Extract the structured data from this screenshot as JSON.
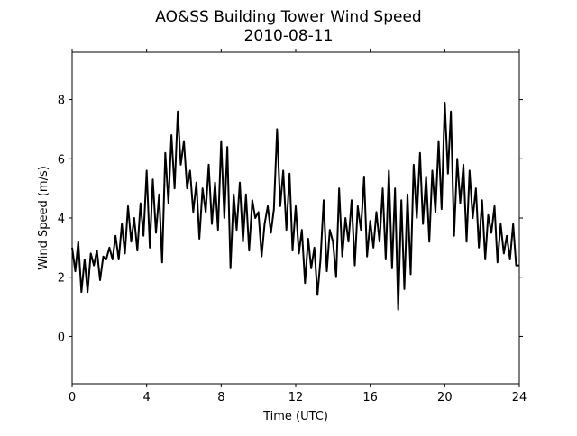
{
  "chart_data": {
    "type": "line",
    "title": "AO&SS Building Tower Wind Speed",
    "subtitle": "2010-08-11",
    "xlabel": "Time (UTC)",
    "ylabel": "Wind Speed (m/s)",
    "xlim": [
      0,
      24
    ],
    "xticks": [
      0,
      4,
      8,
      12,
      16,
      20,
      24
    ],
    "ylim": [
      -1.6,
      9.6
    ],
    "yticks": [
      0,
      2,
      4,
      6,
      8
    ],
    "grid": false,
    "x": [
      0,
      0.17,
      0.33,
      0.5,
      0.67,
      0.83,
      1,
      1.17,
      1.33,
      1.5,
      1.67,
      1.83,
      2,
      2.17,
      2.33,
      2.5,
      2.67,
      2.83,
      3,
      3.17,
      3.33,
      3.5,
      3.67,
      3.83,
      4,
      4.17,
      4.33,
      4.5,
      4.67,
      4.83,
      5,
      5.17,
      5.33,
      5.5,
      5.67,
      5.83,
      6,
      6.17,
      6.33,
      6.5,
      6.67,
      6.83,
      7,
      7.17,
      7.33,
      7.5,
      7.67,
      7.83,
      8,
      8.17,
      8.33,
      8.5,
      8.67,
      8.83,
      9,
      9.17,
      9.33,
      9.5,
      9.67,
      9.83,
      10,
      10.17,
      10.33,
      10.5,
      10.67,
      10.83,
      11,
      11.17,
      11.33,
      11.5,
      11.67,
      11.83,
      12,
      12.17,
      12.33,
      12.5,
      12.67,
      12.83,
      13,
      13.17,
      13.33,
      13.5,
      13.67,
      13.83,
      14,
      14.17,
      14.33,
      14.5,
      14.67,
      14.83,
      15,
      15.17,
      15.33,
      15.5,
      15.67,
      15.83,
      16,
      16.17,
      16.33,
      16.5,
      16.67,
      16.83,
      17,
      17.17,
      17.33,
      17.5,
      17.67,
      17.83,
      18,
      18.17,
      18.33,
      18.5,
      18.67,
      18.83,
      19,
      19.17,
      19.33,
      19.5,
      19.67,
      19.83,
      20,
      20.17,
      20.33,
      20.5,
      20.67,
      20.83,
      21,
      21.17,
      21.33,
      21.5,
      21.67,
      21.83,
      22,
      22.17,
      22.33,
      22.5,
      22.67,
      22.83,
      23,
      23.17,
      23.33,
      23.5,
      23.67,
      23.83,
      24
    ],
    "series": [
      {
        "name": "Wind Speed",
        "color": "#000000",
        "values": [
          3.0,
          2.2,
          3.2,
          1.5,
          2.6,
          1.5,
          2.8,
          2.4,
          2.9,
          1.9,
          2.7,
          2.6,
          3.0,
          2.6,
          3.4,
          2.6,
          3.8,
          2.8,
          4.4,
          3.2,
          4.0,
          2.9,
          4.5,
          3.4,
          5.6,
          3.0,
          5.3,
          3.5,
          4.8,
          2.5,
          6.2,
          4.5,
          6.8,
          5.0,
          7.6,
          5.8,
          6.6,
          5.0,
          5.6,
          4.2,
          5.2,
          3.3,
          5.0,
          4.2,
          5.8,
          3.8,
          5.2,
          3.6,
          6.6,
          4.0,
          6.4,
          2.3,
          4.8,
          3.6,
          5.2,
          3.2,
          4.8,
          2.9,
          4.6,
          4.0,
          4.2,
          2.7,
          3.8,
          4.4,
          3.5,
          4.3,
          7.0,
          4.4,
          5.6,
          3.6,
          5.5,
          2.9,
          4.4,
          2.8,
          3.6,
          1.8,
          3.3,
          2.3,
          3.0,
          1.4,
          2.6,
          4.6,
          2.2,
          3.6,
          3.2,
          2.0,
          5.0,
          2.7,
          4.0,
          3.2,
          4.6,
          2.4,
          4.4,
          3.6,
          5.4,
          2.7,
          3.9,
          3.0,
          4.2,
          3.2,
          5.0,
          2.6,
          5.6,
          2.3,
          5.0,
          0.9,
          4.6,
          1.6,
          4.8,
          2.1,
          5.8,
          4.0,
          6.2,
          3.8,
          5.4,
          3.2,
          5.6,
          4.2,
          6.6,
          4.3,
          7.9,
          5.5,
          7.6,
          3.4,
          6.0,
          4.5,
          5.8,
          3.2,
          5.6,
          4.0,
          5.0,
          3.0,
          4.6,
          2.6,
          4.1,
          3.5,
          4.4,
          2.5,
          3.8,
          2.8,
          3.4,
          2.6,
          3.8,
          2.4,
          2.4
        ]
      }
    ]
  }
}
